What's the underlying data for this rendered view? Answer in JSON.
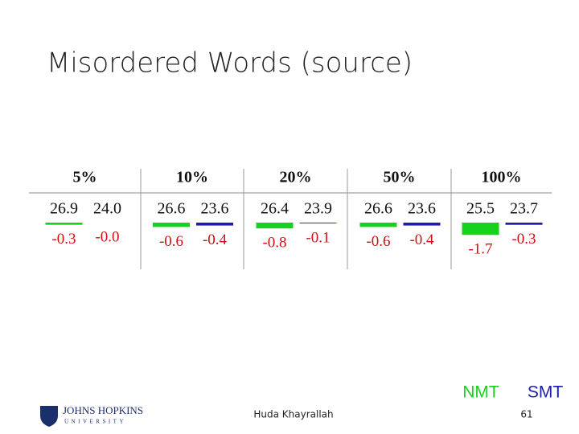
{
  "title": "Misordered Words (source)",
  "table": {
    "columns": [
      {
        "header": "5%",
        "nmt": {
          "value": 26.9,
          "label": "26.9"
        },
        "smt": {
          "value": 24.0,
          "label": "24.0"
        },
        "nmt_delta": {
          "value": -0.3,
          "label": "-0.3"
        },
        "smt_delta": {
          "value": -0.0,
          "label": "-0.0"
        }
      },
      {
        "header": "10%",
        "nmt": {
          "value": 26.6,
          "label": "26.6"
        },
        "smt": {
          "value": 23.6,
          "label": "23.6"
        },
        "nmt_delta": {
          "value": -0.6,
          "label": "-0.6"
        },
        "smt_delta": {
          "value": -0.4,
          "label": "-0.4"
        }
      },
      {
        "header": "20%",
        "nmt": {
          "value": 26.4,
          "label": "26.4"
        },
        "smt": {
          "value": 23.9,
          "label": "23.9"
        },
        "nmt_delta": {
          "value": -0.8,
          "label": "-0.8"
        },
        "smt_delta": {
          "value": -0.1,
          "label": "-0.1"
        }
      },
      {
        "header": "50%",
        "nmt": {
          "value": 26.6,
          "label": "26.6"
        },
        "smt": {
          "value": 23.6,
          "label": "23.6"
        },
        "nmt_delta": {
          "value": -0.6,
          "label": "-0.6"
        },
        "smt_delta": {
          "value": -0.4,
          "label": "-0.4"
        }
      },
      {
        "header": "100%",
        "nmt": {
          "value": 25.5,
          "label": "25.5"
        },
        "smt": {
          "value": 23.7,
          "label": "23.7"
        },
        "nmt_delta": {
          "value": -1.7,
          "label": "-1.7"
        },
        "smt_delta": {
          "value": -0.3,
          "label": "-0.3"
        }
      }
    ]
  },
  "legend": [
    {
      "label": "NMT",
      "color": "#16d21c"
    },
    {
      "label": "SMT",
      "color": "#1c1ca8"
    }
  ],
  "footer": {
    "logo_line1": "JOHNS HOPKINS",
    "logo_line2": "UNIVERSITY",
    "author": "Huda Khayrallah",
    "page": "61"
  }
}
